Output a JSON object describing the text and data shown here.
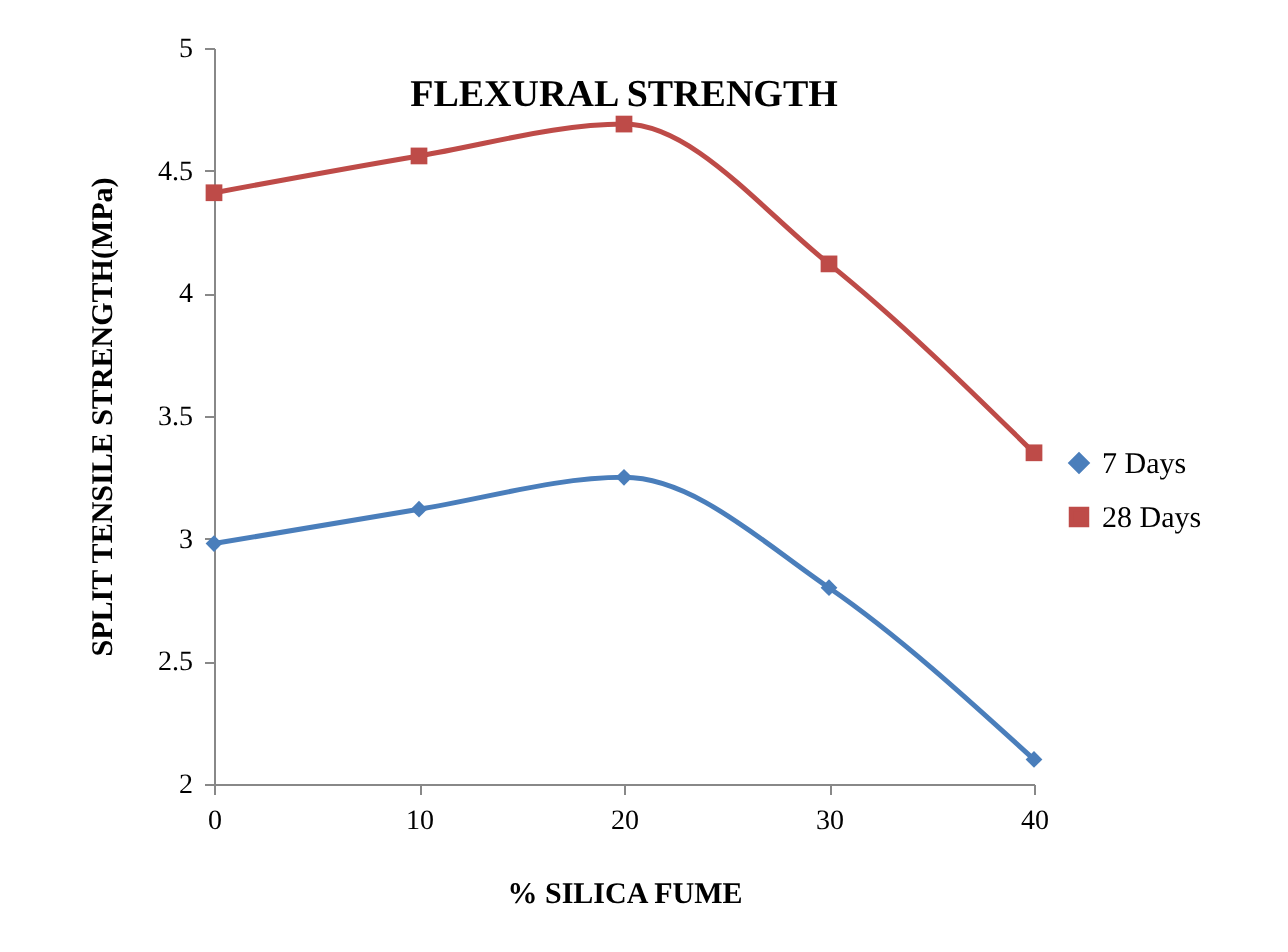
{
  "chart_data": {
    "type": "line",
    "title": "FLEXURAL STRENGTH",
    "xlabel": "% SILICA FUME",
    "ylabel": "SPLIT TENSILE STRENGTH(MPa)",
    "x": [
      0,
      10,
      20,
      30,
      40
    ],
    "series": [
      {
        "name": "7 Days",
        "color": "#4a7ebb",
        "marker": "diamond",
        "values": [
          2.98,
          3.12,
          3.25,
          2.8,
          2.1
        ]
      },
      {
        "name": "28 Days",
        "color": "#be4b48",
        "marker": "square",
        "values": [
          4.41,
          4.56,
          4.69,
          4.12,
          3.35
        ]
      }
    ],
    "xlim": [
      0,
      40
    ],
    "xticks": [
      0,
      10,
      20,
      30,
      40
    ],
    "ylim": [
      2,
      5
    ],
    "yticks": [
      2,
      2.5,
      3,
      3.5,
      4,
      4.5,
      5
    ],
    "legend": "right",
    "line_style": "solid"
  }
}
